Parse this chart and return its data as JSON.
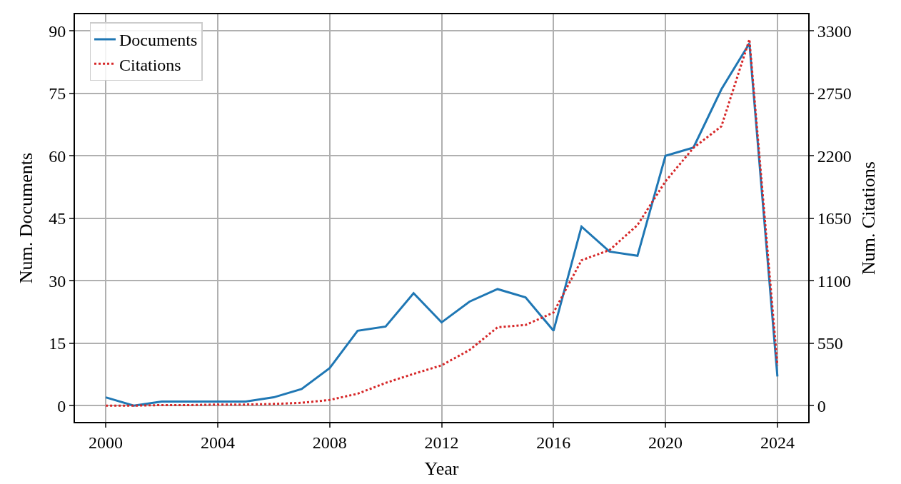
{
  "chart_data": {
    "type": "line",
    "xlabel": "Year",
    "ylabel": "Num. Documents",
    "y2label": "Num. Citations",
    "x": [
      2000,
      2001,
      2002,
      2003,
      2004,
      2005,
      2006,
      2007,
      2008,
      2009,
      2010,
      2011,
      2012,
      2013,
      2014,
      2015,
      2016,
      2017,
      2018,
      2019,
      2020,
      2021,
      2022,
      2023,
      2024
    ],
    "series": [
      {
        "name": "Documents",
        "color": "#1f77b4",
        "line_style": "solid",
        "values": [
          2,
          0,
          1,
          1,
          1,
          1,
          2,
          4,
          9,
          18,
          19,
          27,
          20,
          25,
          28,
          26,
          18,
          43,
          37,
          36,
          60,
          62,
          76,
          87,
          7
        ]
      },
      {
        "name": "Citations",
        "color": "#d62728",
        "line_style": "dotted",
        "axis": "y2",
        "values": [
          0,
          0,
          5,
          5,
          10,
          10,
          15,
          25,
          50,
          105,
          200,
          280,
          355,
          490,
          690,
          710,
          820,
          1280,
          1370,
          1590,
          1975,
          2270,
          2460,
          3225,
          355
        ]
      }
    ],
    "xlim": [
      1998.9,
      2025.1
    ],
    "xticks": [
      2000,
      2004,
      2008,
      2012,
      2016,
      2020,
      2024
    ],
    "ylim": [
      -3.9,
      94
    ],
    "yticks": [
      0,
      15,
      30,
      45,
      60,
      75,
      90
    ],
    "y2lim": [
      -143,
      3446
    ],
    "y2ticks": [
      0,
      550,
      1100,
      1650,
      2200,
      2750,
      3300
    ],
    "grid": true,
    "legend": "top left",
    "marker": "none"
  }
}
